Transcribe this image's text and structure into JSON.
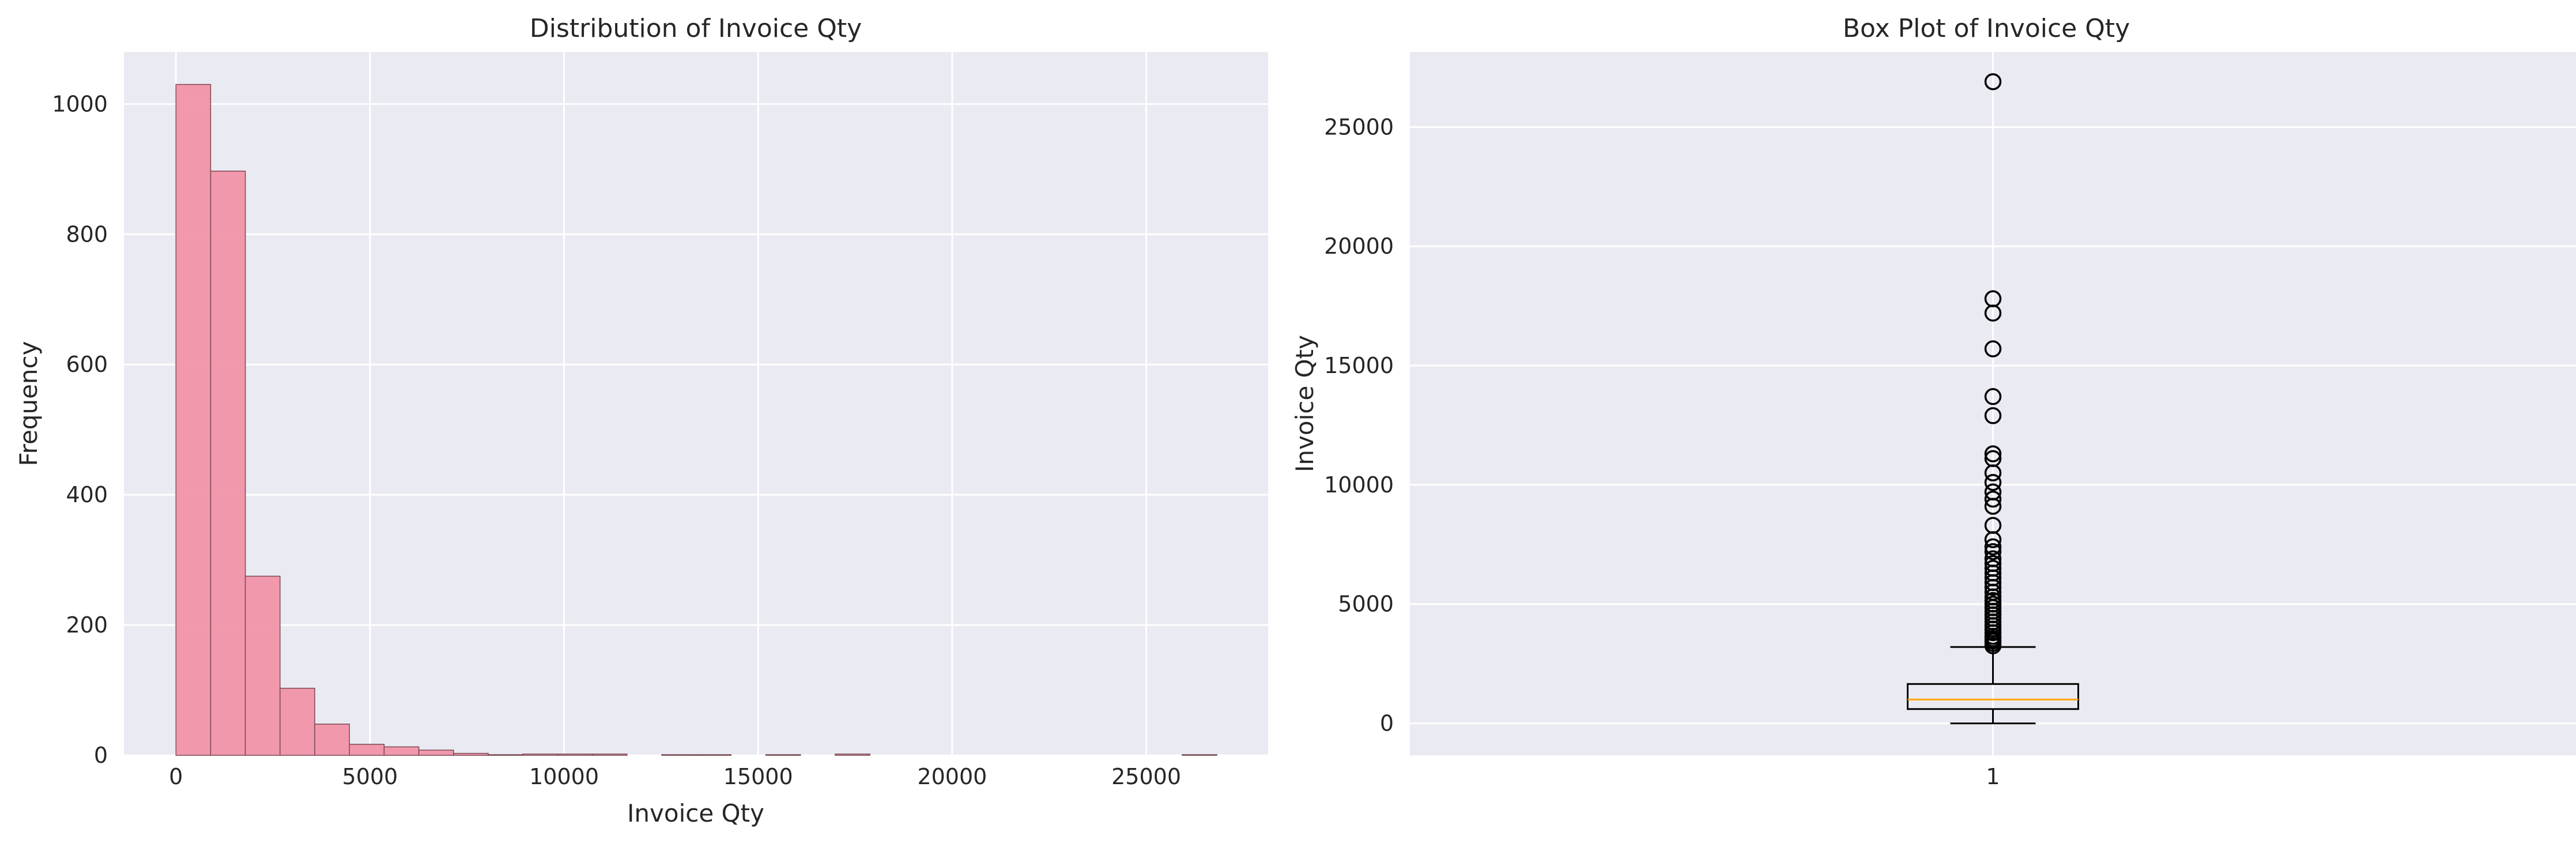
{
  "chart_data": [
    {
      "type": "bar",
      "subtype": "histogram",
      "title": "Distribution of Invoice Qty",
      "xlabel": "Invoice Qty",
      "ylabel": "Frequency",
      "xlim": [
        -1340,
        28140
      ],
      "ylim": [
        0,
        1080
      ],
      "xticks": [
        0,
        5000,
        10000,
        15000,
        20000,
        25000
      ],
      "xtick_labels": [
        "0",
        "5000",
        "10000",
        "15000",
        "20000",
        "25000"
      ],
      "yticks": [
        0,
        200,
        400,
        600,
        800,
        1000
      ],
      "ytick_labels": [
        "0",
        "200",
        "400",
        "600",
        "800",
        "1000"
      ],
      "grid": true,
      "bar_color": "#f294a8",
      "bar_edge": "#7a4a54",
      "bins": [
        {
          "x0": 0,
          "x1": 894,
          "count": 1030
        },
        {
          "x0": 894,
          "x1": 1788,
          "count": 897
        },
        {
          "x0": 1788,
          "x1": 2682,
          "count": 275
        },
        {
          "x0": 2682,
          "x1": 3576,
          "count": 103
        },
        {
          "x0": 3576,
          "x1": 4470,
          "count": 48
        },
        {
          "x0": 4470,
          "x1": 5364,
          "count": 17
        },
        {
          "x0": 5364,
          "x1": 6258,
          "count": 13
        },
        {
          "x0": 6258,
          "x1": 7152,
          "count": 8
        },
        {
          "x0": 7152,
          "x1": 8046,
          "count": 3
        },
        {
          "x0": 8046,
          "x1": 8940,
          "count": 1
        },
        {
          "x0": 8940,
          "x1": 9834,
          "count": 2
        },
        {
          "x0": 9834,
          "x1": 10728,
          "count": 2
        },
        {
          "x0": 10728,
          "x1": 11622,
          "count": 2
        },
        {
          "x0": 12516,
          "x1": 13410,
          "count": 1
        },
        {
          "x0": 13410,
          "x1": 14304,
          "count": 1
        },
        {
          "x0": 15198,
          "x1": 16092,
          "count": 1
        },
        {
          "x0": 16986,
          "x1": 17880,
          "count": 2
        },
        {
          "x0": 25926,
          "x1": 26820,
          "count": 1
        }
      ]
    },
    {
      "type": "box",
      "title": "Box Plot of Invoice Qty",
      "ylabel": "Invoice Qty",
      "ylim": [
        -1340,
        28150
      ],
      "yticks": [
        0,
        5000,
        10000,
        15000,
        20000,
        25000
      ],
      "ytick_labels": [
        "0",
        "5000",
        "10000",
        "15000",
        "20000",
        "25000"
      ],
      "xtick_labels": [
        "1"
      ],
      "grid": true,
      "median_color": "#ffa500",
      "box": {
        "whisker_low": 0,
        "q1": 600,
        "median": 1000,
        "q3": 1650,
        "whisker_high": 3200
      },
      "outliers": [
        3250,
        3350,
        3450,
        3550,
        3650,
        3800,
        3950,
        4100,
        4250,
        4400,
        4550,
        4700,
        4850,
        5000,
        5150,
        5300,
        5500,
        5700,
        5900,
        6100,
        6300,
        6500,
        6700,
        6900,
        7200,
        7400,
        7700,
        8300,
        9100,
        9400,
        9700,
        10100,
        10500,
        11100,
        11300,
        12900,
        13700,
        15700,
        17200,
        17800,
        26900
      ]
    }
  ]
}
